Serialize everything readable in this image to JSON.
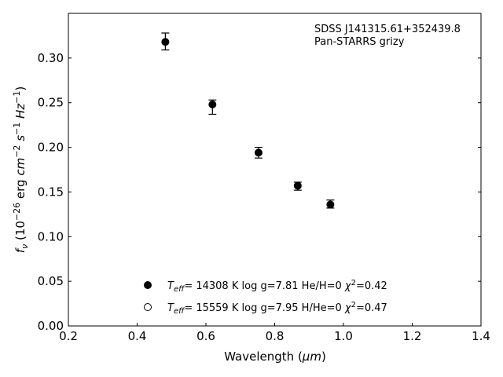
{
  "chart_data": {
    "type": "scatter",
    "x": {
      "label_main": "Wavelength (",
      "label_unit": "μm",
      "label_close": ")",
      "range": [
        0.2,
        1.4
      ],
      "ticks": [
        0.2,
        0.4,
        0.6,
        0.8,
        1.0,
        1.2,
        1.4
      ],
      "tick_labels": [
        "0.2",
        "0.4",
        "0.6",
        "0.8",
        "1.0",
        "1.2",
        "1.4"
      ]
    },
    "y": {
      "label_f": "f",
      "label_nu": "ν",
      "label_open": " (10",
      "label_exp1": "−26",
      "label_erg": " erg ",
      "label_cm": "cm",
      "label_exp2": "−2",
      "label_s": " s",
      "label_exp3": "−1",
      "label_hz": " Hz",
      "label_exp4": "−1",
      "label_close": ")",
      "range": [
        0.0,
        0.35
      ],
      "ticks": [
        0.0,
        0.05,
        0.1,
        0.15,
        0.2,
        0.25,
        0.3
      ],
      "tick_labels": [
        "0.00",
        "0.05",
        "0.10",
        "0.15",
        "0.20",
        "0.25",
        "0.30"
      ]
    },
    "series": [
      {
        "marker": "filled-circle",
        "color": "#000000",
        "points": [
          {
            "x": 0.482,
            "y": 0.318,
            "err_low": 0.009,
            "err_high": 0.01
          },
          {
            "x": 0.619,
            "y": 0.248,
            "err_low": 0.011,
            "err_high": 0.005
          },
          {
            "x": 0.753,
            "y": 0.194,
            "err_low": 0.006,
            "err_high": 0.006
          },
          {
            "x": 0.867,
            "y": 0.157,
            "err_low": 0.005,
            "err_high": 0.004
          },
          {
            "x": 0.962,
            "y": 0.136,
            "err_low": 0.004,
            "err_high": 0.005
          }
        ]
      }
    ],
    "annotation": {
      "line1": "SDSS J141315.61+352439.8",
      "line2": "Pan-STARRS grizy"
    },
    "legend": {
      "placement": "lower-center",
      "entries": [
        {
          "marker": "filled-circle",
          "teff_symbol": "T",
          "teff_sub": "eff",
          "text": "= 14308 K  log g=7.81  He/H=0  ",
          "chi_symbol": "χ",
          "chi_sup": "2",
          "chi_val": "=0.42"
        },
        {
          "marker": "open-circle",
          "teff_symbol": "T",
          "teff_sub": "eff",
          "text": "= 15559 K  log g=7.95  H/He=0  ",
          "chi_symbol": "χ",
          "chi_sup": "2",
          "chi_val": "=0.47"
        }
      ]
    },
    "grid": false
  }
}
